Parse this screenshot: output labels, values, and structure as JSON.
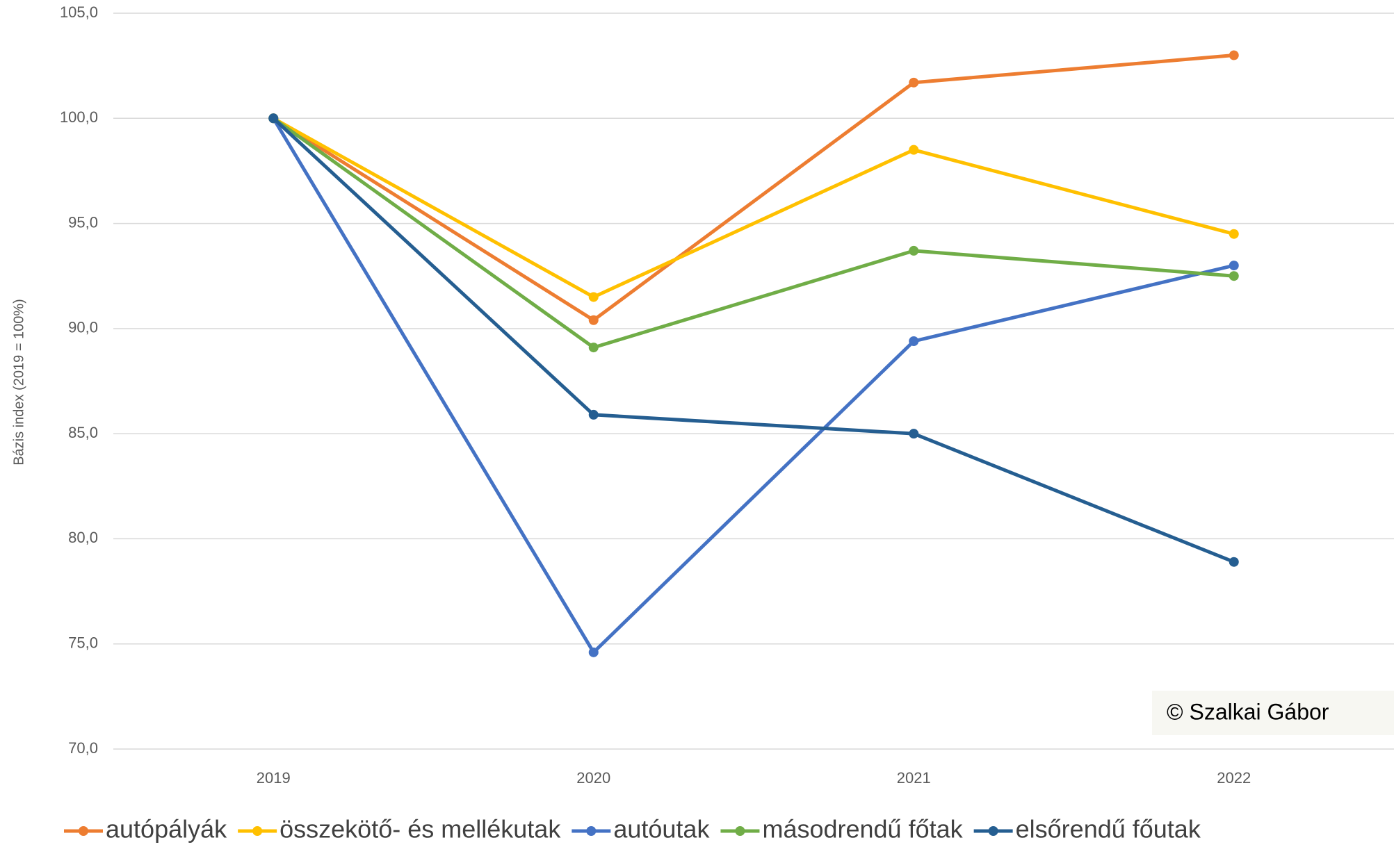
{
  "chart_data": {
    "type": "line",
    "y_label": "Bázis index (2019 = 100%)",
    "annotation": "© Szalkai Gábor",
    "categories": [
      "2019",
      "2020",
      "2021",
      "2022"
    ],
    "series": [
      {
        "name": "autópályák",
        "color": "#ed7d31",
        "values": [
          100.0,
          90.4,
          101.7,
          103.0
        ]
      },
      {
        "name": "összekötő- és mellékutak",
        "color": "#ffc000",
        "values": [
          100.0,
          91.5,
          98.5,
          94.5
        ]
      },
      {
        "name": "autóutak",
        "color": "#4472c4",
        "values": [
          100.0,
          74.6,
          89.4,
          93.0
        ]
      },
      {
        "name": "másodrendű főtak",
        "color": "#70ad47",
        "values": [
          100.0,
          89.1,
          93.7,
          92.5
        ]
      },
      {
        "name": "elsőrendű főutak",
        "color": "#255e91",
        "values": [
          100.0,
          85.9,
          85.0,
          78.9
        ]
      }
    ],
    "ylim": [
      70,
      105
    ],
    "yticks": [
      {
        "value": 70,
        "label": "70,0"
      },
      {
        "value": 75,
        "label": "75,0"
      },
      {
        "value": 80,
        "label": "80,0"
      },
      {
        "value": 85,
        "label": "85,0"
      },
      {
        "value": 90,
        "label": "90,0"
      },
      {
        "value": 95,
        "label": "95,0"
      },
      {
        "value": 100,
        "label": "100,0"
      },
      {
        "value": 105,
        "label": "105,0"
      }
    ],
    "grid": true
  }
}
